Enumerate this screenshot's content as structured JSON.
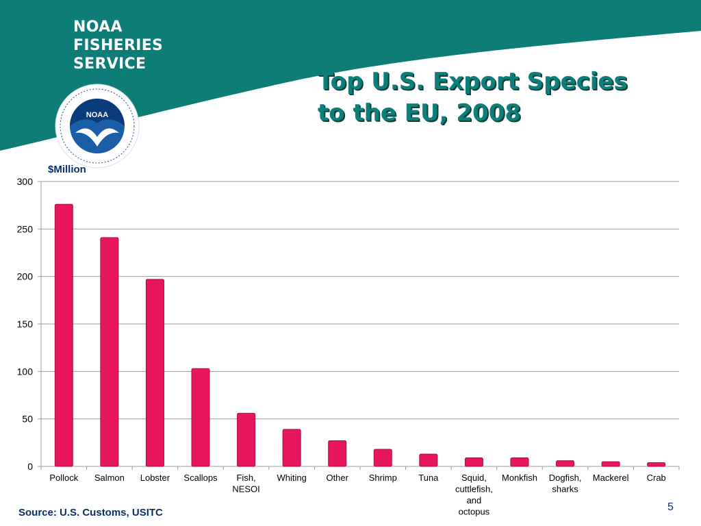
{
  "header": {
    "brand_lines": [
      "NOAA",
      "FISHERIES",
      "SERVICE"
    ],
    "logo_text": "NOAA",
    "title_lines": [
      "Top U.S. Export Species",
      "to the EU, 2008"
    ]
  },
  "chart_data": {
    "type": "bar",
    "title": "Top U.S. Export Species to the EU, 2008",
    "ylabel": "$Million",
    "xlabel": "",
    "ylim": [
      0,
      300
    ],
    "yticks": [
      0,
      50,
      100,
      150,
      200,
      250,
      300
    ],
    "grid": true,
    "categories": [
      "Pollock",
      "Salmon",
      "Lobster",
      "Scallops",
      "Fish, NESOI",
      "Whiting",
      "Other",
      "Shrimp",
      "Tuna",
      "Squid, cuttlefish, and octopus",
      "Monkfish",
      "Dogfish, sharks",
      "Mackerel",
      "Crab"
    ],
    "category_lines": [
      [
        "Pollock"
      ],
      [
        "Salmon"
      ],
      [
        "Lobster"
      ],
      [
        "Scallops"
      ],
      [
        "Fish,",
        "NESOI"
      ],
      [
        "Whiting"
      ],
      [
        "Other"
      ],
      [
        "Shrimp"
      ],
      [
        "Tuna"
      ],
      [
        "Squid,",
        "cuttlefish,",
        "and",
        "octopus"
      ],
      [
        "Monkfish"
      ],
      [
        "Dogfish,",
        "sharks"
      ],
      [
        "Mackerel"
      ],
      [
        "Crab"
      ]
    ],
    "values": [
      276,
      241,
      197,
      103,
      56,
      39,
      27,
      18,
      13,
      9,
      9,
      6,
      5,
      4
    ],
    "colors": {
      "bar": "#e8165f",
      "bar_edge": "#a30e44",
      "grid": "#9a9a9a",
      "axis": "#9a9a9a",
      "text": "#000000"
    }
  },
  "footer": {
    "source": "Source: U.S. Customs, USITC",
    "page_number": "5"
  },
  "colors": {
    "teal": "#0e7d78",
    "navy": "#0a2f6b"
  }
}
